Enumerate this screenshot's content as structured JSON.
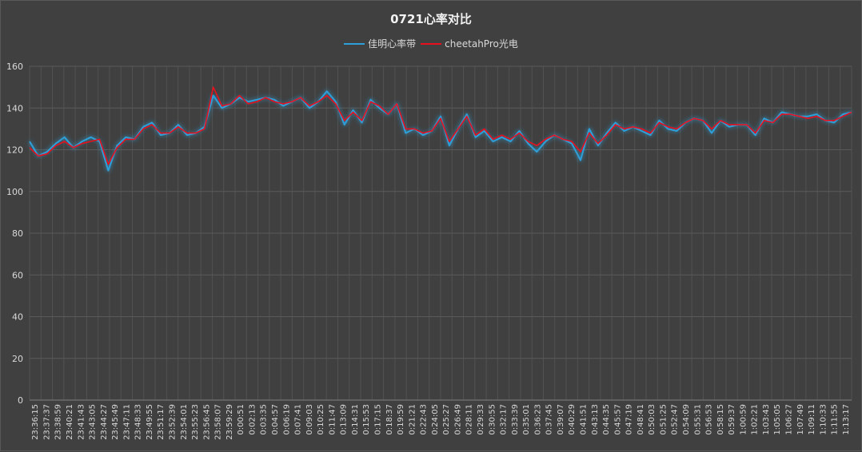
{
  "chart_data": {
    "type": "line",
    "title": "0721心率对比",
    "xlabel": "",
    "ylabel": "",
    "ylim": [
      0,
      160
    ],
    "yticks": [
      0,
      20,
      40,
      60,
      80,
      100,
      120,
      140,
      160
    ],
    "grid": true,
    "legend_position": "top-center",
    "x_tick_labels": [
      "23:36:15",
      "23:37:37",
      "23:38:59",
      "23:40:21",
      "23:41:43",
      "23:43:05",
      "23:44:27",
      "23:45:49",
      "23:47:11",
      "23:48:33",
      "23:49:55",
      "23:51:17",
      "23:52:39",
      "23:54:01",
      "23:55:23",
      "23:56:45",
      "23:58:07",
      "23:59:29",
      "0:00:51",
      "0:02:13",
      "0:03:35",
      "0:04:57",
      "0:06:19",
      "0:07:41",
      "0:09:03",
      "0:10:25",
      "0:11:47",
      "0:13:09",
      "0:14:31",
      "0:15:53",
      "0:17:15",
      "0:18:37",
      "0:19:59",
      "0:21:21",
      "0:22:43",
      "0:24:05",
      "0:25:27",
      "0:26:49",
      "0:28:11",
      "0:29:33",
      "0:30:55",
      "0:32:17",
      "0:33:39",
      "0:35:01",
      "0:36:23",
      "0:37:45",
      "0:39:07",
      "0:40:29",
      "0:41:51",
      "0:43:13",
      "0:44:35",
      "0:45:57",
      "0:47:19",
      "0:48:41",
      "0:50:03",
      "0:51:25",
      "0:52:47",
      "0:54:09",
      "0:55:31",
      "0:56:53",
      "0:58:15",
      "0:59:37",
      "1:00:59",
      "1:02:21",
      "1:03:43",
      "1:05:05",
      "1:06:27",
      "1:07:49",
      "1:09:11",
      "1:10:33",
      "1:11:55",
      "1:13:17"
    ],
    "series": [
      {
        "name": "佳明心率带",
        "color": "#2e9fd8",
        "values": [
          124,
          117,
          119,
          123,
          126,
          121,
          124,
          126,
          124,
          110,
          122,
          126,
          125,
          131,
          133,
          127,
          128,
          132,
          127,
          128,
          131,
          146,
          140,
          142,
          145,
          143,
          144,
          145,
          144,
          141,
          143,
          145,
          140,
          143,
          148,
          143,
          132,
          139,
          133,
          144,
          140,
          137,
          142,
          128,
          130,
          127,
          129,
          136,
          122,
          130,
          137,
          126,
          129,
          124,
          126,
          124,
          129,
          123,
          119,
          124,
          127,
          125,
          123,
          115,
          130,
          122,
          128,
          133,
          129,
          131,
          129,
          127,
          134,
          130,
          129,
          133,
          135,
          134,
          128,
          134,
          131,
          132,
          132,
          127,
          135,
          133,
          138,
          137,
          136,
          136,
          137,
          134,
          133,
          137,
          138
        ]
      },
      {
        "name": "cheetahPro光电",
        "color": "#e8101e",
        "values": [
          121,
          117,
          118,
          122,
          124,
          121,
          123,
          124,
          125,
          113,
          121,
          125,
          125,
          130,
          132,
          128,
          128,
          131,
          128,
          128,
          130,
          150,
          141,
          142,
          146,
          142,
          143,
          145,
          143,
          142,
          143,
          145,
          141,
          143,
          146,
          142,
          134,
          138,
          134,
          143,
          141,
          137,
          142,
          130,
          130,
          128,
          129,
          135,
          124,
          130,
          136,
          127,
          130,
          125,
          127,
          125,
          128,
          124,
          122,
          125,
          127,
          125,
          124,
          119,
          128,
          123,
          127,
          132,
          130,
          131,
          130,
          128,
          133,
          131,
          130,
          133,
          135,
          134,
          130,
          134,
          132,
          132,
          132,
          128,
          134,
          133,
          137,
          137,
          136,
          135,
          136,
          134,
          134,
          136,
          138
        ]
      }
    ]
  }
}
